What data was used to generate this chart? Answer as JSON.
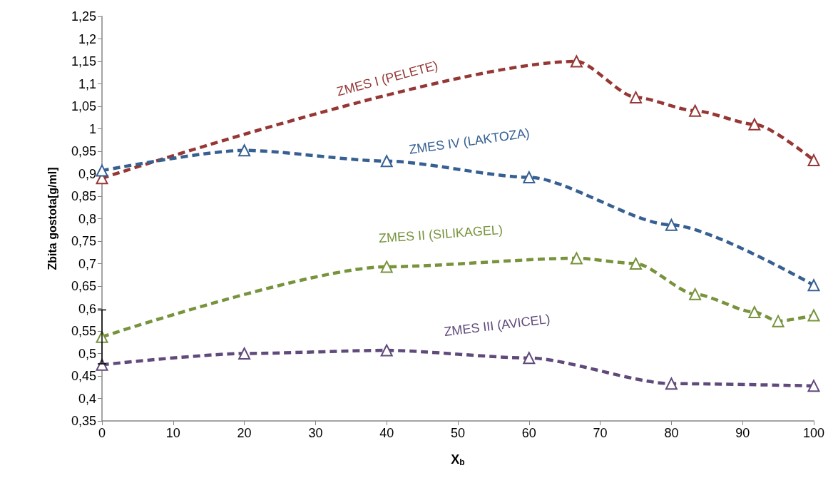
{
  "chart_data": {
    "type": "line",
    "xlabel": "X$_{b}$",
    "ylabel": "Zbita gostota[g/ml]",
    "xlim": [
      0,
      100
    ],
    "xticks": [
      0,
      10,
      20,
      30,
      40,
      50,
      60,
      70,
      80,
      90,
      100
    ],
    "ylim": [
      0.35,
      1.25
    ],
    "yticks": [
      {
        "value": 0.35,
        "label": "0,35"
      },
      {
        "value": 0.4,
        "label": "0,4"
      },
      {
        "value": 0.45,
        "label": "0,45"
      },
      {
        "value": 0.5,
        "label": "0,5"
      },
      {
        "value": 0.55,
        "label": "0,55"
      },
      {
        "value": 0.6,
        "label": "0,6"
      },
      {
        "value": 0.65,
        "label": "0,65"
      },
      {
        "value": 0.7,
        "label": "0,7"
      },
      {
        "value": 0.75,
        "label": "0,75"
      },
      {
        "value": 0.8,
        "label": "0,8"
      },
      {
        "value": 0.85,
        "label": "0,85"
      },
      {
        "value": 0.9,
        "label": "0,9"
      },
      {
        "value": 0.95,
        "label": "0,95"
      },
      {
        "value": 1,
        "label": "1"
      },
      {
        "value": 1.05,
        "label": "1,05"
      },
      {
        "value": 1.1,
        "label": "1,1"
      },
      {
        "value": 1.15,
        "label": "1,15"
      },
      {
        "value": 1.2,
        "label": "1,2"
      },
      {
        "value": 1.25,
        "label": "1,25"
      }
    ],
    "grid": false,
    "legend": false,
    "marker": "triangle",
    "line_style": "dashed",
    "series": [
      {
        "name": "ZMES I (PELETE)",
        "color": "#953735",
        "x": [
          0,
          66.67,
          75,
          83.33,
          91.67,
          100
        ],
        "values": [
          0.89,
          1.15,
          1.07,
          1.04,
          1.01,
          0.93
        ]
      },
      {
        "name": "ZMES IV (LAKTOZA)",
        "color": "#376092",
        "x": [
          0,
          20,
          40,
          60,
          80,
          100
        ],
        "values": [
          0.907,
          0.952,
          0.928,
          0.892,
          0.786,
          0.652
        ]
      },
      {
        "name": "ZMES II (SILIKAGEL)",
        "color": "#77933c",
        "x": [
          0,
          40,
          66.67,
          75,
          83.33,
          91.67,
          95,
          100
        ],
        "values": [
          0.537,
          0.693,
          0.712,
          0.7,
          0.632,
          0.592,
          0.572,
          0.585
        ],
        "errors": [
          0.06,
          null,
          null,
          null,
          null,
          null,
          null,
          null
        ]
      },
      {
        "name": "ZMES III (AVICEL)",
        "color": "#604a7b",
        "x": [
          0,
          20,
          40,
          60,
          80,
          100
        ],
        "values": [
          0.475,
          0.5,
          0.507,
          0.49,
          0.433,
          0.428
        ]
      }
    ]
  }
}
